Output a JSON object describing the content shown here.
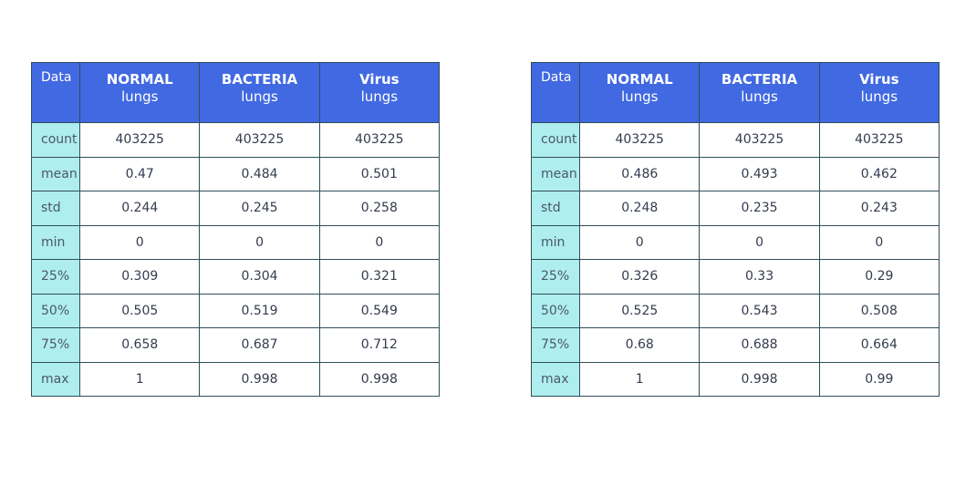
{
  "chart_data": [
    {
      "type": "table",
      "corner_label": "Data",
      "columns": [
        {
          "name": "NORMAL",
          "sub": "lungs"
        },
        {
          "name": "BACTERIA",
          "sub": "lungs"
        },
        {
          "name": "Virus",
          "sub": "lungs"
        }
      ],
      "row_labels": [
        "count",
        "mean",
        "std",
        "min",
        "25%",
        "50%",
        "75%",
        "max"
      ],
      "rows": [
        [
          "403225",
          "403225",
          "403225"
        ],
        [
          "0.47",
          "0.484",
          "0.501"
        ],
        [
          "0.244",
          "0.245",
          "0.258"
        ],
        [
          "0",
          "0",
          "0"
        ],
        [
          "0.309",
          "0.304",
          "0.321"
        ],
        [
          "0.505",
          "0.519",
          "0.549"
        ],
        [
          "0.658",
          "0.687",
          "0.712"
        ],
        [
          "1",
          "0.998",
          "0.998"
        ]
      ]
    },
    {
      "type": "table",
      "corner_label": "Data",
      "columns": [
        {
          "name": "NORMAL",
          "sub": "lungs"
        },
        {
          "name": "BACTERIA",
          "sub": "lungs"
        },
        {
          "name": "Virus",
          "sub": "lungs"
        }
      ],
      "row_labels": [
        "count",
        "mean",
        "std",
        "min",
        "25%",
        "50%",
        "75%",
        "max"
      ],
      "rows": [
        [
          "403225",
          "403225",
          "403225"
        ],
        [
          "0.486",
          "0.493",
          "0.462"
        ],
        [
          "0.248",
          "0.235",
          "0.243"
        ],
        [
          "0",
          "0",
          "0"
        ],
        [
          "0.326",
          "0.33",
          "0.29"
        ],
        [
          "0.525",
          "0.543",
          "0.508"
        ],
        [
          "0.68",
          "0.688",
          "0.664"
        ],
        [
          "1",
          "0.998",
          "0.99"
        ]
      ]
    }
  ],
  "colors": {
    "header_bg": "#4169e1",
    "header_text": "#ffffff",
    "row_header_bg": "#afeeee",
    "border": "#2f4f5a"
  }
}
